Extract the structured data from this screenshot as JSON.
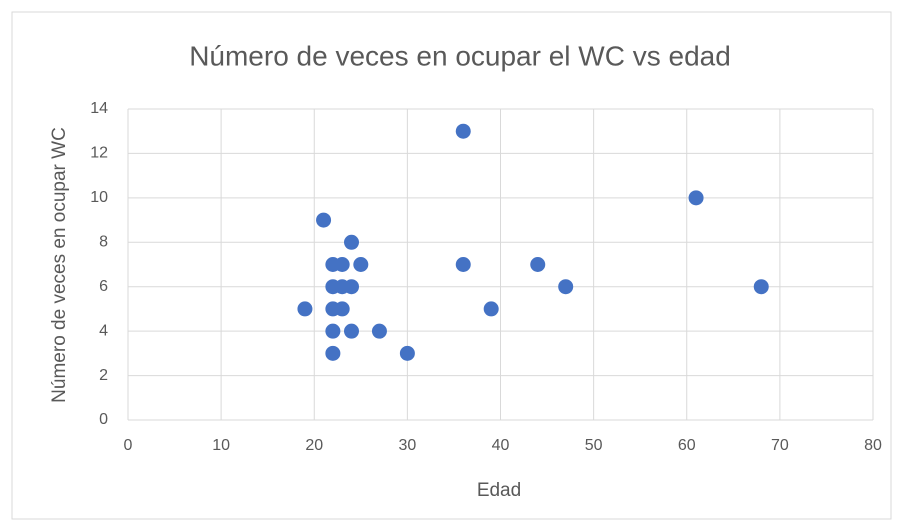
{
  "chart_data": {
    "type": "scatter",
    "title": "Número de veces en ocupar el WC vs edad",
    "x_label": "Edad",
    "y_label": "Número de veces en ocupar WC",
    "series": [
      {
        "name": "Número de veces en ocupar WC",
        "color": "#4472c4",
        "x": [
          19,
          21,
          22,
          22,
          22,
          22,
          22,
          23,
          23,
          23,
          24,
          24,
          24,
          25,
          27,
          30,
          36,
          36,
          39,
          44,
          47,
          61,
          68
        ],
        "values": [
          5,
          9,
          7,
          6,
          5,
          4,
          3,
          7,
          6,
          5,
          8,
          6,
          4,
          7,
          4,
          3,
          13,
          7,
          5,
          7,
          6,
          10,
          6
        ]
      }
    ],
    "xlim": [
      0,
      80
    ],
    "xticks": [
      0,
      10,
      20,
      30,
      40,
      50,
      60,
      70,
      80
    ],
    "ylim": [
      0,
      14
    ],
    "yticks": [
      0,
      2,
      4,
      6,
      8,
      10,
      12,
      14
    ],
    "grid": true
  }
}
